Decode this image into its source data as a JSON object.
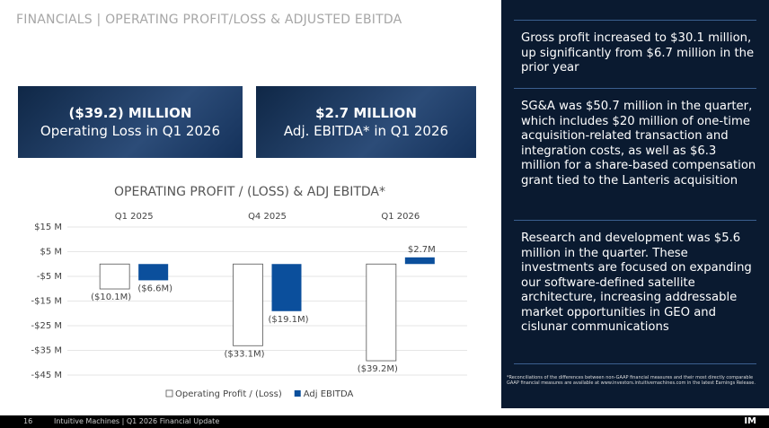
{
  "header": {
    "title": "FINANCIALS | OPERATING PROFIT/LOSS & ADJUSTED EBITDA"
  },
  "kpis": [
    {
      "value": "($39.2) MILLION",
      "label": "Operating Loss in Q1 2026"
    },
    {
      "value": "$2.7 MILLION",
      "label": "Adj. EBITDA* in Q1 2026"
    }
  ],
  "chart_data": {
    "type": "bar",
    "title": "OPERATING PROFIT / (LOSS) & ADJ EBITDA*",
    "categories": [
      "Q1 2025",
      "Q4 2025",
      "Q1 2026"
    ],
    "series": [
      {
        "name": "Operating Profit / (Loss)",
        "color": "#ffffff",
        "values": [
          -10.1,
          -33.1,
          -39.2
        ],
        "value_labels": [
          "($10.1M)",
          "($33.1M)",
          "($39.2M)"
        ]
      },
      {
        "name": "Adj EBITDA",
        "color": "#0b4f9c",
        "values": [
          -6.6,
          -19.1,
          2.7
        ],
        "value_labels": [
          "($6.6M)",
          "($19.1M)",
          "$2.7M"
        ]
      }
    ],
    "ylim": [
      -45,
      15
    ],
    "yticks": [
      {
        "value": 15,
        "label": "$15 M"
      },
      {
        "value": 5,
        "label": "$5 M"
      },
      {
        "value": -5,
        "label": "-$5 M"
      },
      {
        "value": -15,
        "label": "-$15 M"
      },
      {
        "value": -25,
        "label": "-$25 M"
      },
      {
        "value": -35,
        "label": "-$35 M"
      },
      {
        "value": -45,
        "label": "-$45 M"
      }
    ],
    "grid": true,
    "legend": "bottom"
  },
  "panel": {
    "paragraphs": [
      "Gross profit increased to $30.1 million, up significantly from $6.7 million in the prior year",
      "SG&A was $50.7 million in the quarter, which includes $20 million of one-time acquisition-related transaction and integration costs, as well as $6.3 million for a share-based compensation grant tied to the Lanteris acquisition",
      "Research and development was $5.6 million in the quarter. These investments are focused on expanding our software-defined satellite architecture, increasing addressable market opportunities in GEO and cislunar communications"
    ],
    "footnote": "*Reconciliations of the differences between non-GAAP financial measures and their most directly comparable GAAP financial measures are available at www.investors.intuitivemachines.com in the latest Earnings Release."
  },
  "footer": {
    "page": "16",
    "text": "Intuitive Machines | Q1 2026 Financial Update",
    "logo": "IM"
  }
}
